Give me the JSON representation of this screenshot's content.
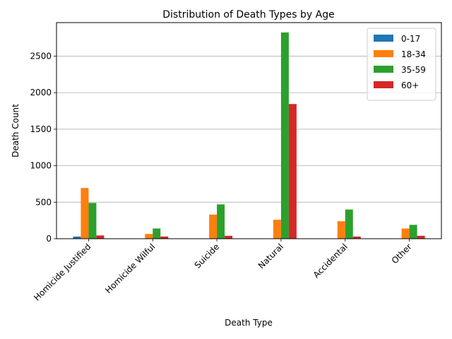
{
  "chart_data": {
    "type": "bar",
    "title": "Distribution of Death Types by Age",
    "xlabel": "Death Type",
    "ylabel": "Death Count",
    "categories": [
      "Homicide Justified",
      "Homicide Wilful",
      "Suicide",
      "Natural",
      "Accidental",
      "Other"
    ],
    "series": [
      {
        "name": "0-17",
        "color": "#1f77b4",
        "values": [
          30,
          0,
          0,
          0,
          0,
          0
        ]
      },
      {
        "name": "18-34",
        "color": "#ff7f0e",
        "values": [
          695,
          65,
          330,
          260,
          240,
          140
        ]
      },
      {
        "name": "35-59",
        "color": "#2ca02c",
        "values": [
          490,
          140,
          470,
          2825,
          400,
          190
        ]
      },
      {
        "name": "60+",
        "color": "#d62728",
        "values": [
          45,
          30,
          40,
          1845,
          30,
          40
        ]
      }
    ],
    "ylim": [
      0,
      2960
    ],
    "yticks": [
      0,
      500,
      1000,
      1500,
      2000,
      2500
    ],
    "grid": "y",
    "legend_position": "top-right"
  }
}
